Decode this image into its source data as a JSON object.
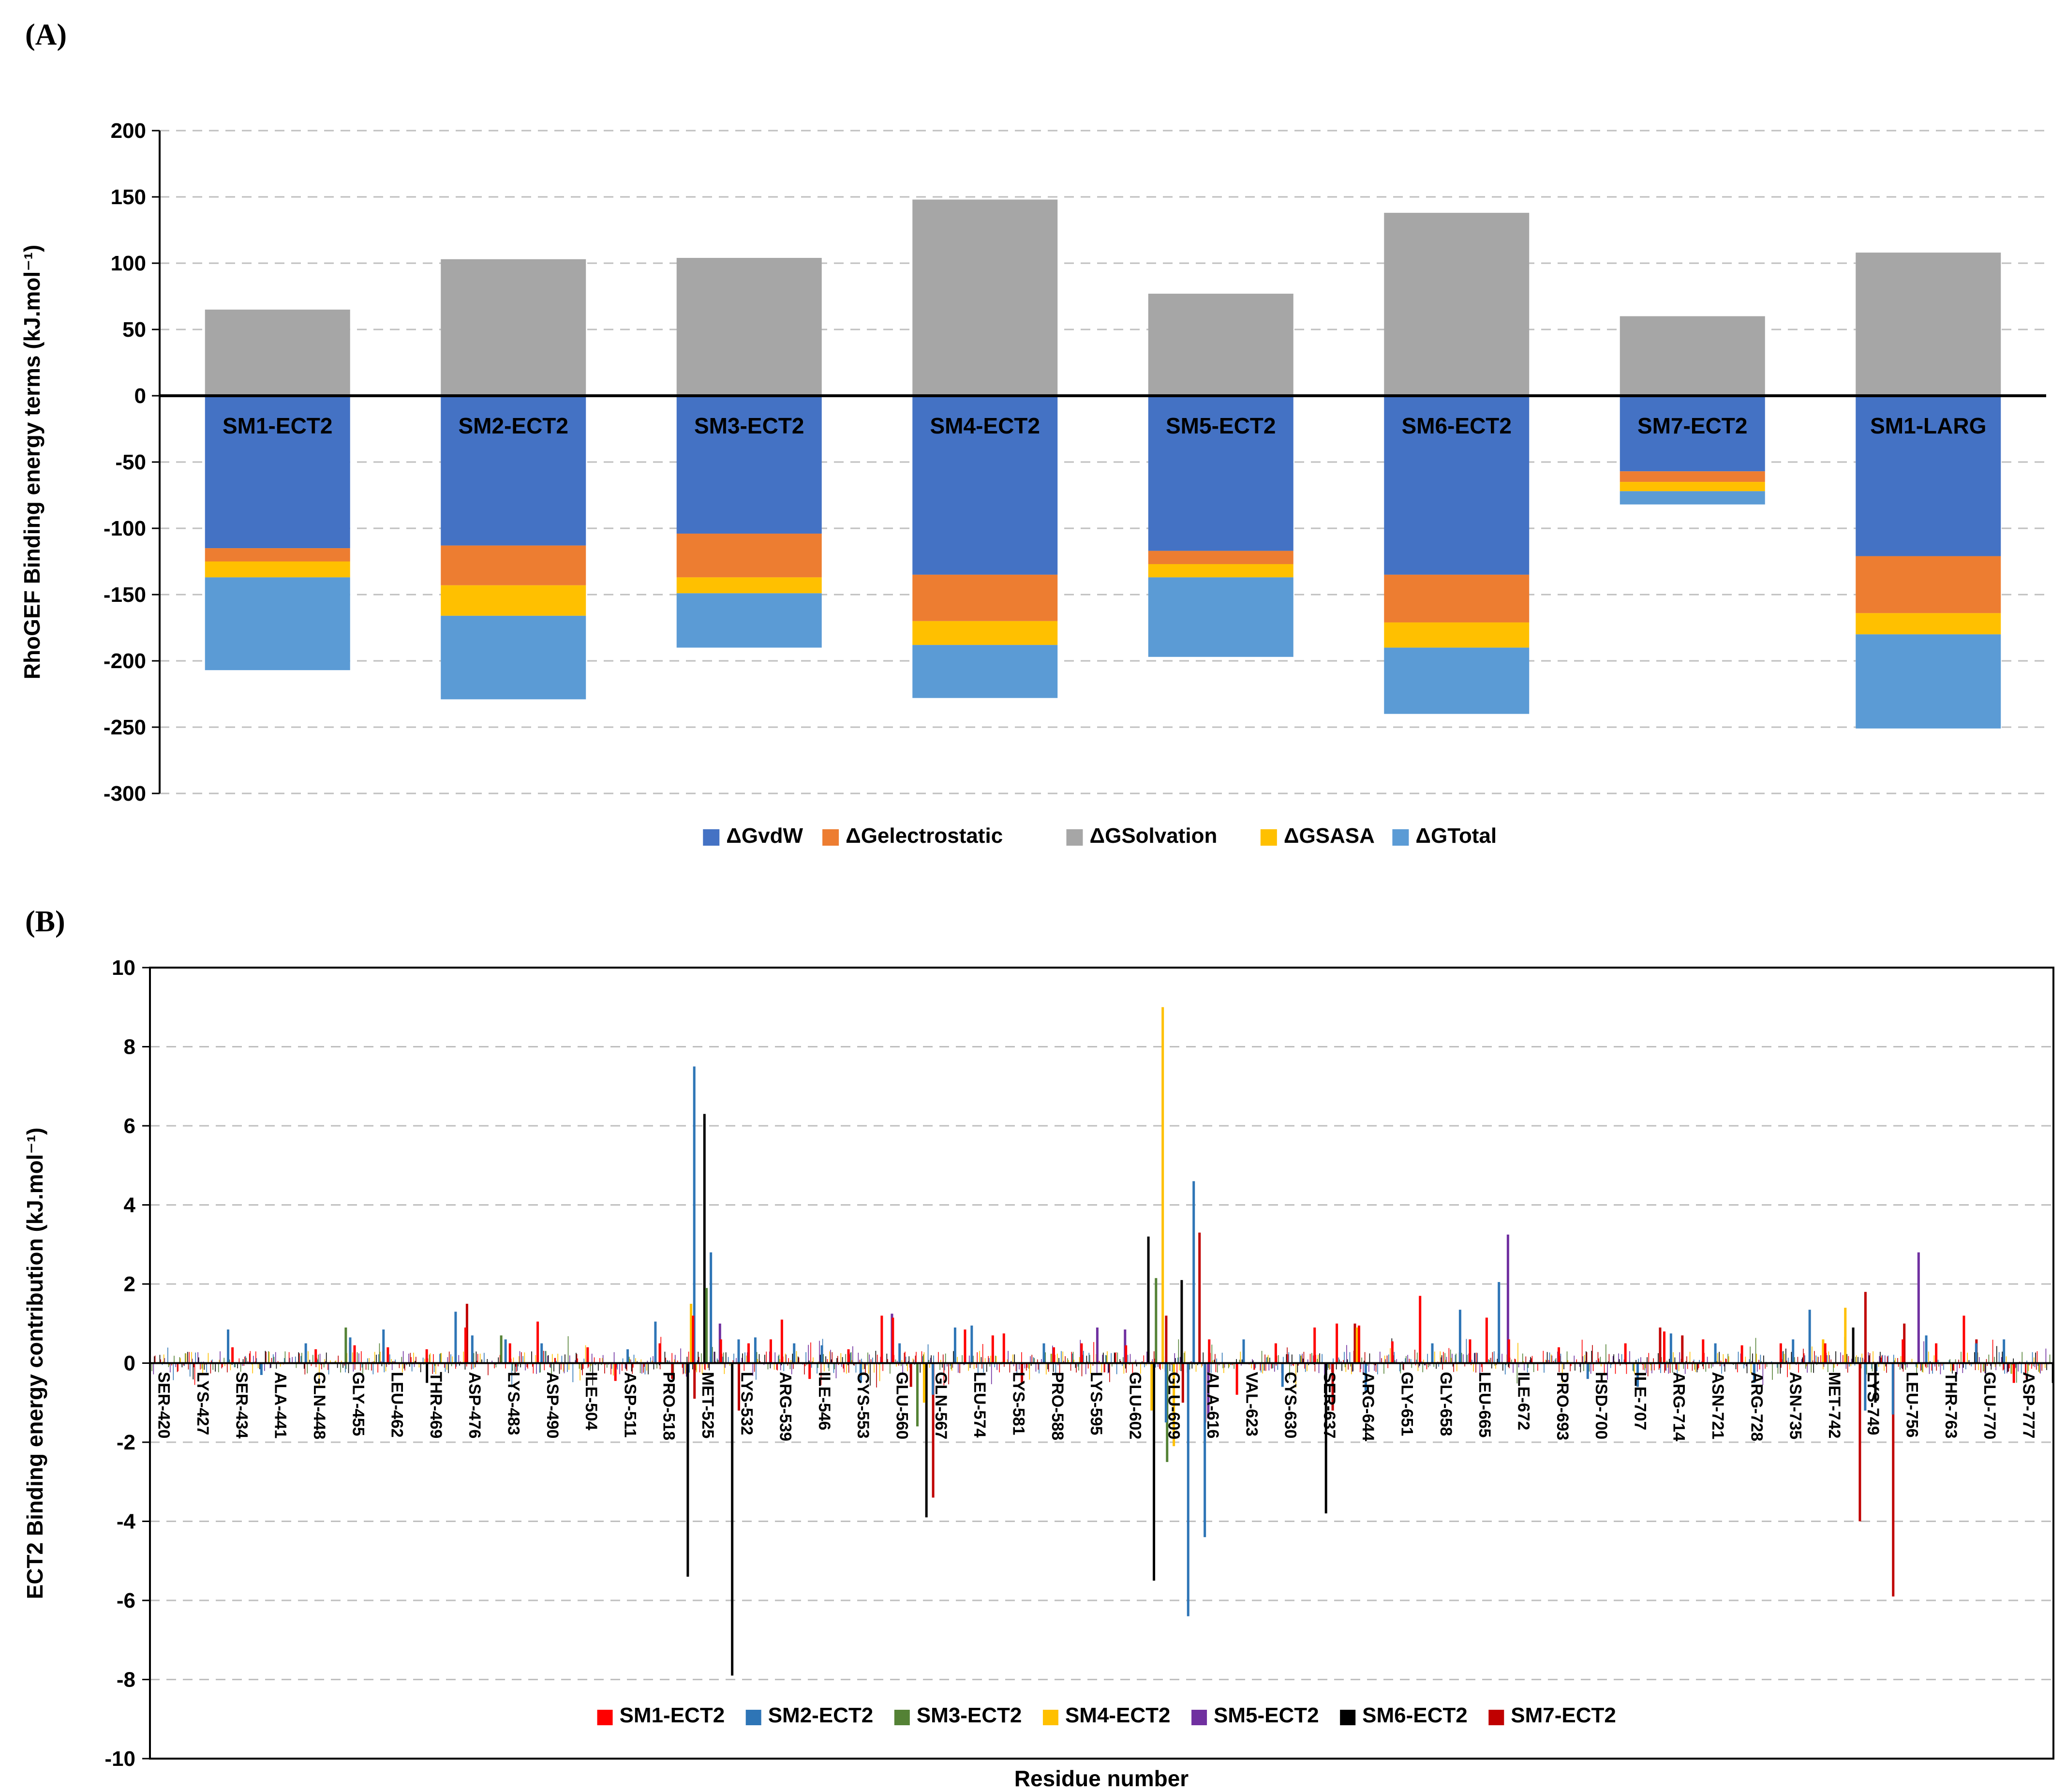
{
  "panels": {
    "a_label": "(A)",
    "b_label": "(B)"
  },
  "chart_data": [
    {
      "id": "panel-a",
      "type": "bar",
      "stacked": true,
      "title": "",
      "ylabel": "RhoGEF Binding energy terms (kJ.mol⁻¹)",
      "xlabel": "",
      "ylim": [
        -300,
        200
      ],
      "ytick_step": 50,
      "grid": "dashed-horizontal",
      "legend_position": "bottom",
      "categories": [
        "SM1-ECT2",
        "SM2-ECT2",
        "SM3-ECT2",
        "SM4-ECT2",
        "SM5-ECT2",
        "SM6-ECT2",
        "SM7-ECT2",
        "SM1-LARG"
      ],
      "series": [
        {
          "name": "ΔGvdW",
          "color": "#4472C4",
          "values": [
            -115,
            -113,
            -104,
            -135,
            -117,
            -135,
            -57,
            -121
          ]
        },
        {
          "name": "ΔGelectrostatic",
          "color": "#ED7D31",
          "values": [
            -10,
            -30,
            -33,
            -35,
            -10,
            -36,
            -8,
            -43
          ]
        },
        {
          "name": "ΔGSolvation",
          "color": "#A6A6A6",
          "values": [
            65,
            103,
            104,
            148,
            77,
            138,
            60,
            108
          ]
        },
        {
          "name": "ΔGSASA",
          "color": "#FFC000",
          "values": [
            -12,
            -23,
            -12,
            -18,
            -10,
            -19,
            -7,
            -16
          ]
        },
        {
          "name": "ΔGTotal",
          "color": "#5B9BD5",
          "values": [
            -70,
            -63,
            -41,
            -40,
            -60,
            -50,
            -10,
            -71
          ]
        }
      ]
    },
    {
      "id": "panel-b",
      "type": "bar",
      "title": "",
      "ylabel": "ECT2 Binding energy contribution (kJ.mol⁻¹)",
      "xlabel": "Residue number",
      "ylim": [
        -10,
        10
      ],
      "ytick_step": 2,
      "grid": "dashed-horizontal",
      "legend_position": "bottom-inside",
      "categories_per_tick": 7,
      "tick_labels": [
        "SER-420",
        "LYS-427",
        "SER-434",
        "ALA-441",
        "GLN-448",
        "GLY-455",
        "LEU-462",
        "THR-469",
        "ASP-476",
        "LYS-483",
        "ASP-490",
        "ILE-504",
        "ASP-511",
        "PRO-518",
        "MET-525",
        "LYS-532",
        "ARG-539",
        "ILE-546",
        "CYS-553",
        "GLU-560",
        "GLN-567",
        "LEU-574",
        "LYS-581",
        "PRO-588",
        "LYS-595",
        "GLU-602",
        "GLU-609",
        "ALA-616",
        "VAL-623",
        "CYS-630",
        "SER-637",
        "ARG-644",
        "GLY-651",
        "GLY-658",
        "LEU-665",
        "ILE-672",
        "PRO-693",
        "HSD-700",
        "ILE-707",
        "ARG-714",
        "ASN-721",
        "ARG-728",
        "ASN-735",
        "MET-742",
        "LYS-749",
        "LEU-756",
        "THR-763",
        "GLU-770",
        "ASP-777"
      ],
      "series": [
        {
          "name": "SM1-ECT2",
          "color": "#FF0000"
        },
        {
          "name": "SM2-ECT2",
          "color": "#2E75B6"
        },
        {
          "name": "SM3-ECT2",
          "color": "#548235"
        },
        {
          "name": "SM4-ECT2",
          "color": "#FFC000"
        },
        {
          "name": "SM5-ECT2",
          "color": "#7030A0"
        },
        {
          "name": "SM6-ECT2",
          "color": "#000000"
        },
        {
          "name": "SM7-ECT2",
          "color": "#C00000"
        }
      ],
      "peaks": [
        [
          434,
          1,
          0.85
        ],
        [
          435,
          0,
          0.4
        ],
        [
          440,
          1,
          -0.3
        ],
        [
          448,
          1,
          0.5
        ],
        [
          450,
          0,
          0.35
        ],
        [
          455,
          2,
          0.9
        ],
        [
          456,
          1,
          0.65
        ],
        [
          457,
          0,
          0.45
        ],
        [
          462,
          1,
          0.85
        ],
        [
          463,
          0,
          0.4
        ],
        [
          469,
          5,
          -0.5
        ],
        [
          470,
          0,
          0.35
        ],
        [
          475,
          1,
          1.3
        ],
        [
          476,
          6,
          1.5
        ],
        [
          477,
          0,
          0.9
        ],
        [
          478,
          1,
          0.7
        ],
        [
          483,
          2,
          0.7
        ],
        [
          484,
          1,
          0.6
        ],
        [
          485,
          0,
          0.5
        ],
        [
          490,
          0,
          1.05
        ],
        [
          491,
          1,
          0.5
        ],
        [
          506,
          0,
          0.4
        ],
        [
          511,
          0,
          -0.45
        ],
        [
          513,
          1,
          0.35
        ],
        [
          518,
          1,
          1.05
        ],
        [
          519,
          0,
          0.5
        ],
        [
          520,
          6,
          -0.4
        ],
        [
          523,
          5,
          -5.4
        ],
        [
          524,
          3,
          1.5
        ],
        [
          524,
          6,
          -0.9
        ],
        [
          525,
          1,
          7.5
        ],
        [
          525,
          0,
          1.2
        ],
        [
          526,
          5,
          6.3
        ],
        [
          527,
          2,
          1.9
        ],
        [
          528,
          1,
          2.8
        ],
        [
          529,
          4,
          1.0
        ],
        [
          530,
          0,
          0.6
        ],
        [
          531,
          5,
          -7.9
        ],
        [
          532,
          6,
          -1.2
        ],
        [
          533,
          1,
          0.6
        ],
        [
          535,
          0,
          0.5
        ],
        [
          536,
          1,
          0.65
        ],
        [
          539,
          0,
          0.6
        ],
        [
          541,
          0,
          1.1
        ],
        [
          543,
          1,
          0.5
        ],
        [
          546,
          0,
          -0.4
        ],
        [
          548,
          1,
          0.45
        ],
        [
          553,
          0,
          0.35
        ],
        [
          555,
          1,
          -0.5
        ],
        [
          559,
          0,
          1.2
        ],
        [
          560,
          4,
          1.25
        ],
        [
          561,
          0,
          1.15
        ],
        [
          562,
          1,
          0.5
        ],
        [
          563,
          6,
          -0.6
        ],
        [
          565,
          2,
          -1.6
        ],
        [
          566,
          5,
          -3.9
        ],
        [
          566,
          3,
          -1.0
        ],
        [
          567,
          6,
          -3.4
        ],
        [
          568,
          1,
          -0.8
        ],
        [
          572,
          1,
          0.9
        ],
        [
          574,
          0,
          0.85
        ],
        [
          575,
          1,
          0.95
        ],
        [
          579,
          0,
          0.7
        ],
        [
          581,
          0,
          0.75
        ],
        [
          583,
          6,
          -0.5
        ],
        [
          588,
          1,
          0.5
        ],
        [
          590,
          0,
          0.4
        ],
        [
          595,
          0,
          0.5
        ],
        [
          597,
          4,
          0.9
        ],
        [
          602,
          4,
          0.85
        ],
        [
          603,
          0,
          0.45
        ],
        [
          606,
          5,
          3.2
        ],
        [
          607,
          5,
          -5.5
        ],
        [
          607,
          3,
          -1.2
        ],
        [
          608,
          2,
          2.15
        ],
        [
          609,
          3,
          9.0
        ],
        [
          609,
          6,
          1.2
        ],
        [
          610,
          2,
          -2.5
        ],
        [
          610,
          1,
          -1.5
        ],
        [
          611,
          3,
          -2.1
        ],
        [
          612,
          5,
          2.1
        ],
        [
          612,
          6,
          -1.0
        ],
        [
          614,
          1,
          -6.4
        ],
        [
          615,
          1,
          4.6
        ],
        [
          615,
          6,
          3.3
        ],
        [
          616,
          6,
          -1.5
        ],
        [
          617,
          1,
          -4.4
        ],
        [
          617,
          4,
          -1.4
        ],
        [
          618,
          0,
          0.6
        ],
        [
          623,
          0,
          -0.8
        ],
        [
          624,
          1,
          0.6
        ],
        [
          630,
          0,
          0.5
        ],
        [
          631,
          1,
          -0.6
        ],
        [
          637,
          0,
          0.9
        ],
        [
          638,
          5,
          -3.8
        ],
        [
          639,
          6,
          -1.2
        ],
        [
          641,
          0,
          1.0
        ],
        [
          643,
          6,
          1.0
        ],
        [
          644,
          3,
          0.9
        ],
        [
          645,
          0,
          0.95
        ],
        [
          646,
          1,
          -0.7
        ],
        [
          651,
          0,
          0.55
        ],
        [
          656,
          0,
          1.7
        ],
        [
          658,
          1,
          0.5
        ],
        [
          663,
          1,
          1.35
        ],
        [
          665,
          0,
          0.6
        ],
        [
          668,
          0,
          1.15
        ],
        [
          670,
          1,
          2.05
        ],
        [
          671,
          4,
          3.25
        ],
        [
          672,
          0,
          0.6
        ],
        [
          695,
          0,
          0.4
        ],
        [
          700,
          1,
          -0.4
        ],
        [
          707,
          0,
          0.5
        ],
        [
          709,
          1,
          -0.6
        ],
        [
          712,
          6,
          0.9
        ],
        [
          714,
          0,
          0.8
        ],
        [
          715,
          1,
          0.75
        ],
        [
          716,
          6,
          0.7
        ],
        [
          721,
          0,
          0.6
        ],
        [
          723,
          1,
          0.5
        ],
        [
          728,
          0,
          0.45
        ],
        [
          730,
          1,
          -0.5
        ],
        [
          735,
          0,
          0.5
        ],
        [
          737,
          1,
          0.6
        ],
        [
          740,
          1,
          1.35
        ],
        [
          742,
          3,
          0.6
        ],
        [
          743,
          0,
          0.5
        ],
        [
          746,
          3,
          1.4
        ],
        [
          747,
          5,
          0.9
        ],
        [
          748,
          6,
          -4.0
        ],
        [
          749,
          6,
          1.8
        ],
        [
          750,
          1,
          -1.2
        ],
        [
          751,
          5,
          -1.0
        ],
        [
          754,
          6,
          -5.9
        ],
        [
          755,
          1,
          -1.3
        ],
        [
          756,
          6,
          1.0
        ],
        [
          757,
          0,
          0.6
        ],
        [
          759,
          4,
          2.8
        ],
        [
          761,
          1,
          0.7
        ],
        [
          763,
          0,
          0.5
        ],
        [
          768,
          0,
          1.2
        ],
        [
          769,
          6,
          0.6
        ],
        [
          770,
          1,
          0.5
        ],
        [
          775,
          1,
          0.6
        ],
        [
          777,
          0,
          -0.5
        ]
      ],
      "noise": {
        "amplitude": 0.3,
        "seed": 1234
      }
    }
  ]
}
